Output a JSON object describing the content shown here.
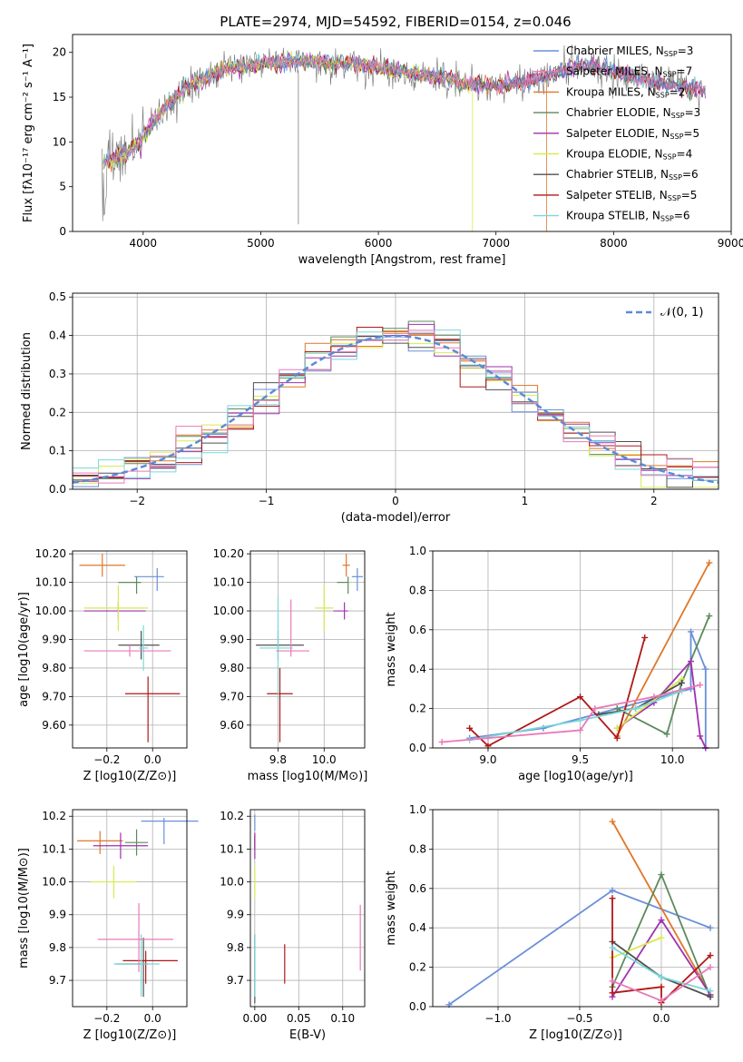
{
  "title": "PLATE=2974, MJD=54592, FIBERID=0154, z=0.046",
  "colors": {
    "MILES": [
      "#6a8fd8",
      "#d8d8d8",
      "#e07b20"
    ],
    "series": [
      "#6a8fd8",
      "#e0772a",
      "#5c8a5c",
      "#a030b0",
      "#d8ea50",
      "#505050",
      "#b01818",
      "#7ad8d8",
      "#e87ab8"
    ]
  },
  "chart_data": [
    {
      "id": "spectrum",
      "type": "line",
      "xlabel": "wavelength [Angstrom, rest frame]",
      "ylabel": "Flux [fλ10⁻¹⁷ erg cm⁻² s⁻¹ A⁻¹]",
      "xlim": [
        3400,
        9000
      ],
      "ylim": [
        0,
        22
      ],
      "xticks": [
        4000,
        5000,
        6000,
        7000,
        8000,
        9000
      ],
      "yticks": [
        0,
        5,
        10,
        15,
        20
      ],
      "legend_position": "top-right",
      "legend": [
        {
          "main": "Chabrier MILES, N",
          "sub": "SSP",
          "tail": "=3",
          "color": "#6a8fd8"
        },
        {
          "main": "Salpeter MILES, N",
          "sub": "SSP",
          "tail": "=7",
          "color": "#e87ab8"
        },
        {
          "main": "Kroupa MILES, N",
          "sub": "SSP",
          "tail": "=2",
          "color": "#e0772a"
        },
        {
          "main": "Chabrier ELODIE, N",
          "sub": "SSP",
          "tail": "=3",
          "color": "#5c8a5c"
        },
        {
          "main": "Salpeter ELODIE, N",
          "sub": "SSP",
          "tail": "=5",
          "color": "#a030b0"
        },
        {
          "main": "Kroupa ELODIE, N",
          "sub": "SSP",
          "tail": "=4",
          "color": "#d8ea50"
        },
        {
          "main": "Chabrier STELIB, N",
          "sub": "SSP",
          "tail": "=6",
          "color": "#505050"
        },
        {
          "main": "Salpeter STELIB, N",
          "sub": "SSP",
          "tail": "=5",
          "color": "#b01818"
        },
        {
          "main": "Kroupa STELIB, N",
          "sub": "SSP",
          "tail": "=6",
          "color": "#7ad8d8"
        }
      ],
      "continuum": [
        [
          3650,
          7.5
        ],
        [
          3800,
          8.5
        ],
        [
          3950,
          9.5
        ],
        [
          4050,
          11.5
        ],
        [
          4200,
          14
        ],
        [
          4350,
          16
        ],
        [
          4500,
          17
        ],
        [
          4700,
          18.2
        ],
        [
          4900,
          18.5
        ],
        [
          5100,
          18.8
        ],
        [
          5300,
          19
        ],
        [
          5500,
          19
        ],
        [
          5700,
          18.7
        ],
        [
          5900,
          18.6
        ],
        [
          6100,
          18
        ],
        [
          6300,
          17.6
        ],
        [
          6500,
          17.3
        ],
        [
          6700,
          16.6
        ],
        [
          6900,
          16.2
        ],
        [
          7100,
          16.5
        ],
        [
          7300,
          16.8
        ],
        [
          7500,
          17.5
        ],
        [
          7700,
          18.7
        ],
        [
          7900,
          18.2
        ],
        [
          8100,
          17.5
        ],
        [
          8300,
          16.8
        ],
        [
          8500,
          16.4
        ],
        [
          8780,
          15.7
        ]
      ]
    },
    {
      "id": "residuals",
      "type": "histogram",
      "xlabel": "(data-model)/error",
      "ylabel": "Normed distribution",
      "xlim": [
        -2.5,
        2.5
      ],
      "ylim": [
        0,
        0.51
      ],
      "xticks": [
        -2,
        -1,
        0,
        1,
        2
      ],
      "yticks": [
        0.0,
        0.1,
        0.2,
        0.3,
        0.4,
        0.5
      ],
      "legend": "𝒩(0, 1)",
      "legend_position": "top-right"
    },
    {
      "id": "age-vs-Z",
      "type": "errorbar",
      "xlabel": "Z [log10(Z/Z⊙)]",
      "ylabel": "age  [log10(age/yr)]",
      "xlim": [
        -0.35,
        0.15
      ],
      "ylim": [
        9.52,
        10.21
      ],
      "xticks": [
        -0.2,
        0.0
      ],
      "yticks": [
        9.6,
        9.7,
        9.8,
        9.9,
        10.0,
        10.1,
        10.2
      ],
      "points": [
        {
          "x": 0.02,
          "y": 10.12,
          "xe": [
            0.1,
            0.03
          ],
          "ye": [
            0.05,
            0.03
          ],
          "c": 0
        },
        {
          "x": -0.22,
          "y": 10.16,
          "xe": [
            0.1,
            0.1
          ],
          "ye": [
            0.04,
            0.04
          ],
          "c": 1
        },
        {
          "x": -0.07,
          "y": 10.1,
          "xe": [
            0.08,
            0.02
          ],
          "ye": [
            0.04,
            0.02
          ],
          "c": 2
        },
        {
          "x": -0.15,
          "y": 10.0,
          "xe": [
            0.15,
            0.12
          ],
          "ye": [
            0.03,
            0.03
          ],
          "c": 3
        },
        {
          "x": -0.15,
          "y": 10.01,
          "xe": [
            0.15,
            0.13
          ],
          "ye": [
            0.08,
            0.08
          ],
          "c": 4
        },
        {
          "x": -0.05,
          "y": 9.88,
          "xe": [
            0.1,
            0.08
          ],
          "ye": [
            0.05,
            0.05
          ],
          "c": 5
        },
        {
          "x": -0.02,
          "y": 9.71,
          "xe": [
            0.1,
            0.14
          ],
          "ye": [
            0.17,
            0.06
          ],
          "c": 6
        },
        {
          "x": -0.04,
          "y": 9.87,
          "xe": [
            0.02,
            0.02
          ],
          "ye": [
            0.08,
            0.08
          ],
          "c": 7
        },
        {
          "x": -0.1,
          "y": 9.86,
          "xe": [
            0.2,
            0.18
          ],
          "ye": [
            0.02,
            0.02
          ],
          "c": 8
        }
      ]
    },
    {
      "id": "age-vs-mass",
      "type": "errorbar",
      "xlabel": "mass [log10(M/M⊙)]",
      "ylabel": "",
      "xlim": [
        9.6,
        10.22
      ],
      "ylim": [
        9.52,
        10.21
      ],
      "xticks": [
        9.75,
        10.0
      ],
      "yticks": [
        9.6,
        9.7,
        9.8,
        9.9,
        10.0,
        10.1,
        10.2
      ],
      "points": [
        {
          "x": 10.18,
          "y": 10.12,
          "xe": [
            0.03,
            0.03
          ],
          "ye": [
            0.05,
            0.03
          ],
          "c": 0
        },
        {
          "x": 10.12,
          "y": 10.16,
          "xe": [
            0.02,
            0.02
          ],
          "ye": [
            0.04,
            0.04
          ],
          "c": 1
        },
        {
          "x": 10.13,
          "y": 10.1,
          "xe": [
            0.06,
            0.0
          ],
          "ye": [
            0.04,
            0.02
          ],
          "c": 2
        },
        {
          "x": 10.11,
          "y": 10.0,
          "xe": [
            0.06,
            0.02
          ],
          "ye": [
            0.03,
            0.03
          ],
          "c": 3
        },
        {
          "x": 10.0,
          "y": 10.01,
          "xe": [
            0.05,
            0.05
          ],
          "ye": [
            0.08,
            0.08
          ],
          "c": 4
        },
        {
          "x": 9.75,
          "y": 9.88,
          "xe": [
            0.12,
            0.14
          ],
          "ye": [
            0.05,
            0.05
          ],
          "c": 5
        },
        {
          "x": 9.76,
          "y": 9.71,
          "xe": [
            0.07,
            0.07
          ],
          "ye": [
            0.17,
            0.09
          ],
          "c": 6
        },
        {
          "x": 9.75,
          "y": 9.87,
          "xe": [
            0.1,
            0.08
          ],
          "ye": [
            0.18,
            0.18
          ],
          "c": 7
        },
        {
          "x": 9.82,
          "y": 9.86,
          "xe": [
            0.08,
            0.1
          ],
          "ye": [
            0.02,
            0.18
          ],
          "c": 8
        }
      ]
    },
    {
      "id": "weight-vs-age",
      "type": "line",
      "xlabel": "age  [log10(age/yr)]",
      "ylabel": "mass weight",
      "xlim": [
        8.7,
        10.25
      ],
      "ylim": [
        0,
        1.0
      ],
      "xticks": [
        9.0,
        9.5,
        10.0
      ],
      "yticks": [
        0.0,
        0.2,
        0.4,
        0.6,
        0.8,
        1.0
      ],
      "series": [
        {
          "c": 0,
          "x": [
            8.9,
            9.3,
            9.7,
            10.1,
            10.1,
            10.18,
            10.18
          ],
          "y": [
            0.05,
            0.1,
            0.2,
            0.3,
            0.59,
            0.4,
            0.0
          ]
        },
        {
          "c": 1,
          "x": [
            9.7,
            10.2
          ],
          "y": [
            0.06,
            0.94
          ]
        },
        {
          "c": 2,
          "x": [
            9.7,
            9.97,
            10.05,
            10.2
          ],
          "y": [
            0.2,
            0.07,
            0.33,
            0.67
          ]
        },
        {
          "c": 3,
          "x": [
            9.7,
            9.9,
            10.1,
            10.15,
            10.18
          ],
          "y": [
            0.1,
            0.23,
            0.44,
            0.06,
            0.0
          ]
        },
        {
          "c": 4,
          "x": [
            9.7,
            10.05
          ],
          "y": [
            0.1,
            0.35
          ]
        },
        {
          "c": 5,
          "x": [
            9.6,
            9.8,
            10.05
          ],
          "y": [
            0.17,
            0.2,
            0.33
          ]
        },
        {
          "c": 6,
          "x": [
            8.9,
            9.0,
            9.5,
            9.7,
            9.85
          ],
          "y": [
            0.1,
            0.01,
            0.26,
            0.05,
            0.56
          ]
        },
        {
          "c": 7,
          "x": [
            8.9,
            9.5,
            9.8,
            10.05
          ],
          "y": [
            0.04,
            0.14,
            0.2,
            0.29
          ]
        },
        {
          "c": 8,
          "x": [
            8.75,
            9.0,
            9.5,
            9.58,
            9.9,
            10.15
          ],
          "y": [
            0.03,
            0.05,
            0.09,
            0.2,
            0.26,
            0.32
          ]
        }
      ]
    },
    {
      "id": "mass-vs-Z",
      "type": "errorbar",
      "xlabel": "Z [log10(Z/Z⊙)]",
      "ylabel": "mass [log10(M/M⊙)]",
      "xlim": [
        -0.35,
        0.15
      ],
      "ylim": [
        9.62,
        10.22
      ],
      "xticks": [
        -0.2,
        0.0
      ],
      "yticks": [
        9.7,
        9.8,
        9.9,
        10.0,
        10.1,
        10.2
      ],
      "points": [
        {
          "x": 0.05,
          "y": 10.185,
          "xe": [
            0.1,
            0.15
          ],
          "ye": [
            0.07,
            0.01
          ],
          "c": 0
        },
        {
          "x": -0.23,
          "y": 10.125,
          "xe": [
            0.1,
            0.1
          ],
          "ye": [
            0.04,
            0.03
          ],
          "c": 1
        },
        {
          "x": -0.07,
          "y": 10.12,
          "xe": [
            0.05,
            0.05
          ],
          "ye": [
            0.04,
            0.04
          ],
          "c": 2
        },
        {
          "x": -0.14,
          "y": 10.11,
          "xe": [
            0.12,
            0.12
          ],
          "ye": [
            0.04,
            0.04
          ],
          "c": 3
        },
        {
          "x": -0.17,
          "y": 10.0,
          "xe": [
            0.1,
            0.1
          ],
          "ye": [
            0.05,
            0.05
          ],
          "c": 4
        },
        {
          "x": -0.04,
          "y": 9.75,
          "xe": [
            0.12,
            0.02
          ],
          "ye": [
            0.1,
            0.08
          ],
          "c": 5
        },
        {
          "x": -0.03,
          "y": 9.76,
          "xe": [
            0.1,
            0.14
          ],
          "ye": [
            0.07,
            0.03
          ],
          "c": 6
        },
        {
          "x": -0.05,
          "y": 9.75,
          "xe": [
            0.12,
            0.08
          ],
          "ye": [
            0.1,
            0.09
          ],
          "c": 7
        },
        {
          "x": -0.06,
          "y": 9.825,
          "xe": [
            0.18,
            0.15
          ],
          "ye": [
            0.1,
            0.11
          ],
          "c": 8
        }
      ]
    },
    {
      "id": "mass-vs-EBV",
      "type": "errorbar",
      "xlabel": "E(B-V)",
      "ylabel": "",
      "xlim": [
        -0.005,
        0.125
      ],
      "ylim": [
        9.62,
        10.22
      ],
      "xticks": [
        0.0,
        0.05,
        0.1
      ],
      "yticks": [
        9.7,
        9.8,
        9.9,
        10.0,
        10.1,
        10.2
      ],
      "points": [
        {
          "x": 0.0,
          "y": 10.185,
          "xe": [
            0,
            0
          ],
          "ye": [
            0.03,
            0.02
          ],
          "c": 0
        },
        {
          "x": 0.0,
          "y": 10.125,
          "xe": [
            0,
            0
          ],
          "ye": [
            0.02,
            0.02
          ],
          "c": 1
        },
        {
          "x": 0.0,
          "y": 10.12,
          "xe": [
            0,
            0
          ],
          "ye": [
            0.02,
            0.02
          ],
          "c": 2
        },
        {
          "x": 0.0,
          "y": 10.11,
          "xe": [
            0,
            0
          ],
          "ye": [
            0.04,
            0.04
          ],
          "c": 3
        },
        {
          "x": 0.0,
          "y": 10.0,
          "xe": [
            0,
            0
          ],
          "ye": [
            0.05,
            0.05
          ],
          "c": 4
        },
        {
          "x": 0.0,
          "y": 9.78,
          "xe": [
            0,
            0
          ],
          "ye": [
            0.15,
            0.06
          ],
          "c": 5
        },
        {
          "x": 0.034,
          "y": 9.76,
          "xe": [
            0,
            0
          ],
          "ye": [
            0.07,
            0.05
          ],
          "c": 6
        },
        {
          "x": 0.0,
          "y": 9.75,
          "xe": [
            0,
            0
          ],
          "ye": [
            0.1,
            0.09
          ],
          "c": 7
        },
        {
          "x": 0.12,
          "y": 9.83,
          "xe": [
            0,
            0
          ],
          "ye": [
            0.1,
            0.1
          ],
          "c": 8
        }
      ]
    },
    {
      "id": "weight-vs-Z",
      "type": "line",
      "xlabel": "Z [log10(Z/Z⊙)]",
      "ylabel": "mass weight",
      "xlim": [
        -1.4,
        0.35
      ],
      "ylim": [
        0,
        1.0
      ],
      "xticks": [
        -1.0,
        -0.5,
        0.0
      ],
      "yticks": [
        0.0,
        0.2,
        0.4,
        0.6,
        0.8,
        1.0
      ],
      "series": [
        {
          "c": 0,
          "x": [
            -1.3,
            -0.3,
            0.3
          ],
          "y": [
            0.01,
            0.59,
            0.4
          ]
        },
        {
          "c": 1,
          "x": [
            -0.3,
            0.3
          ],
          "y": [
            0.94,
            0.06
          ]
        },
        {
          "c": 2,
          "x": [
            -0.3,
            0.0,
            0.3
          ],
          "y": [
            0.1,
            0.67,
            0.05
          ]
        },
        {
          "c": 3,
          "x": [
            -0.3,
            0.0,
            0.3
          ],
          "y": [
            0.05,
            0.44,
            0.06
          ]
        },
        {
          "c": 4,
          "x": [
            -0.3,
            0.0
          ],
          "y": [
            0.25,
            0.35
          ]
        },
        {
          "c": 5,
          "x": [
            -0.3,
            0.0,
            0.3
          ],
          "y": [
            0.33,
            0.15,
            0.05
          ]
        },
        {
          "c": 6,
          "x": [
            -0.3,
            -0.3,
            0.0,
            0.0,
            0.3
          ],
          "y": [
            0.55,
            0.07,
            0.1,
            0.02,
            0.26
          ]
        },
        {
          "c": 7,
          "x": [
            -0.3,
            0.0,
            0.3
          ],
          "y": [
            0.3,
            0.15,
            0.08
          ]
        },
        {
          "c": 8,
          "x": [
            -0.3,
            0.0,
            0.3
          ],
          "y": [
            0.13,
            0.03,
            0.2
          ]
        }
      ]
    }
  ]
}
